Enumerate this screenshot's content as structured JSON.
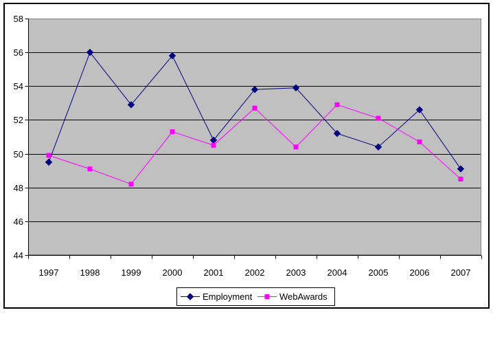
{
  "chart_data": {
    "type": "line",
    "categories": [
      "1997",
      "1998",
      "1999",
      "2000",
      "2001",
      "2002",
      "2003",
      "2004",
      "2005",
      "2006",
      "2007"
    ],
    "series": [
      {
        "name": "Employment",
        "color": "#000080",
        "marker": "diamond",
        "values": [
          49.5,
          56.0,
          52.9,
          55.8,
          50.8,
          53.8,
          53.9,
          51.2,
          50.4,
          52.6,
          49.1
        ]
      },
      {
        "name": "WebAwards",
        "color": "#FF00FF",
        "marker": "square",
        "values": [
          49.9,
          49.1,
          48.2,
          51.3,
          50.5,
          52.7,
          50.4,
          52.9,
          52.1,
          50.7,
          48.5
        ]
      }
    ],
    "yticks": [
      58,
      56,
      54,
      52,
      50,
      48,
      46,
      44
    ],
    "ylim": [
      44,
      58
    ],
    "grid": true,
    "legend_position": "bottom",
    "colors": {
      "plot_bg": "#C0C0C0",
      "plot_border": "#808080",
      "gridline": "#000000",
      "axis": "#000000",
      "frame_border": "#000000",
      "background": "#FFFFFF",
      "text": "#000000"
    }
  }
}
